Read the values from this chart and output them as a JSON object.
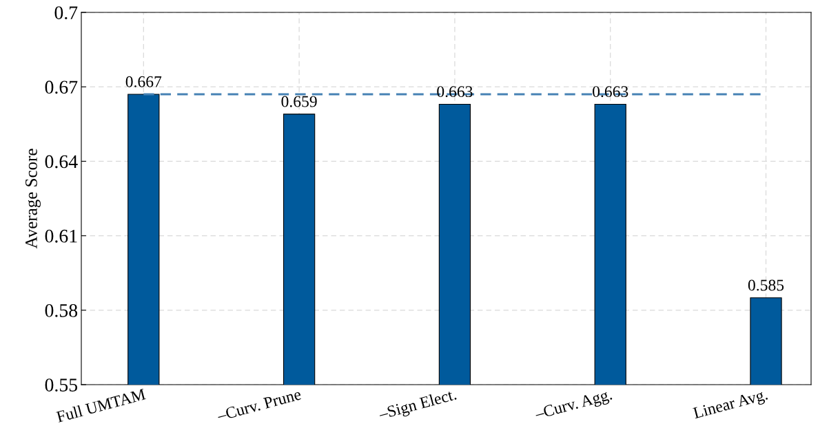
{
  "chart_data": {
    "type": "bar",
    "ylabel": "Average Score",
    "categories": [
      "Full UMTAM",
      "–Curv. Prune",
      "–Sign Elect.",
      "–Curv. Agg.",
      "Linear Avg."
    ],
    "values": [
      0.667,
      0.659,
      0.663,
      0.663,
      0.585
    ],
    "color": "#005a9c",
    "ylim": [
      0.55,
      0.7
    ],
    "yticks": [
      0.55,
      0.58,
      0.61,
      0.64,
      0.67,
      {
        "value": 0.7,
        "label": "0.7"
      }
    ],
    "ref_lines": [
      {
        "axis": "y",
        "value": 0.667,
        "color": "#4682b4",
        "line_style": "dashed"
      }
    ],
    "grid": true,
    "data_labels": true
  }
}
